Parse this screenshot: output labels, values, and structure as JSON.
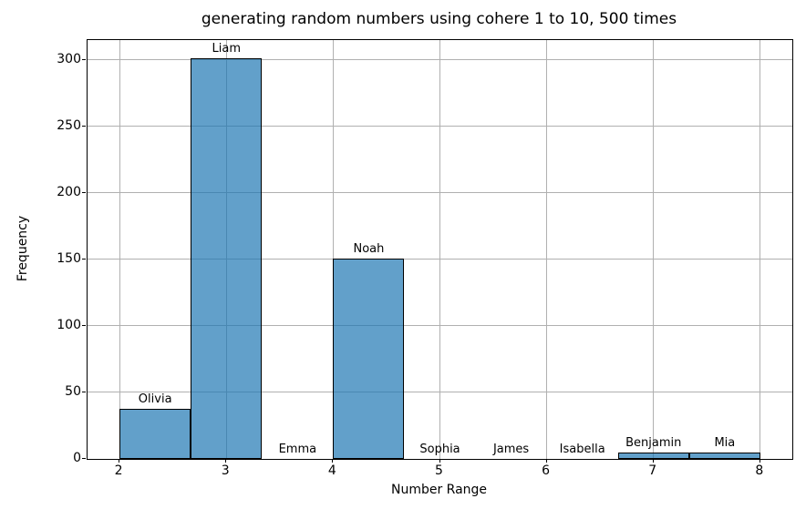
{
  "chart_data": {
    "type": "bar",
    "title": "generating random numbers using cohere 1 to 10, 500 times",
    "xlabel": "Number Range",
    "ylabel": "Frequency",
    "categories": [
      "Olivia",
      "Liam",
      "Emma",
      "Noah",
      "Sophia",
      "James",
      "Isabella",
      "Benjamin",
      "Mia"
    ],
    "values": [
      38,
      301,
      0,
      151,
      0,
      0,
      0,
      5,
      5
    ],
    "total_samples": 500,
    "bin_start": 2.0,
    "bin_width": 0.6667,
    "x_ticks": [
      2,
      3,
      4,
      5,
      6,
      7,
      8
    ],
    "y_ticks": [
      0,
      50,
      100,
      150,
      200,
      250,
      300
    ],
    "xlim": [
      1.7,
      8.3
    ],
    "ylim": [
      0,
      315
    ],
    "grid": true,
    "legend": "none",
    "bar_fill_color": "#1f77b4",
    "bar_fill_alpha": 0.7,
    "bar_edge_color": "#000000",
    "grid_color": "#b0b0b0"
  }
}
